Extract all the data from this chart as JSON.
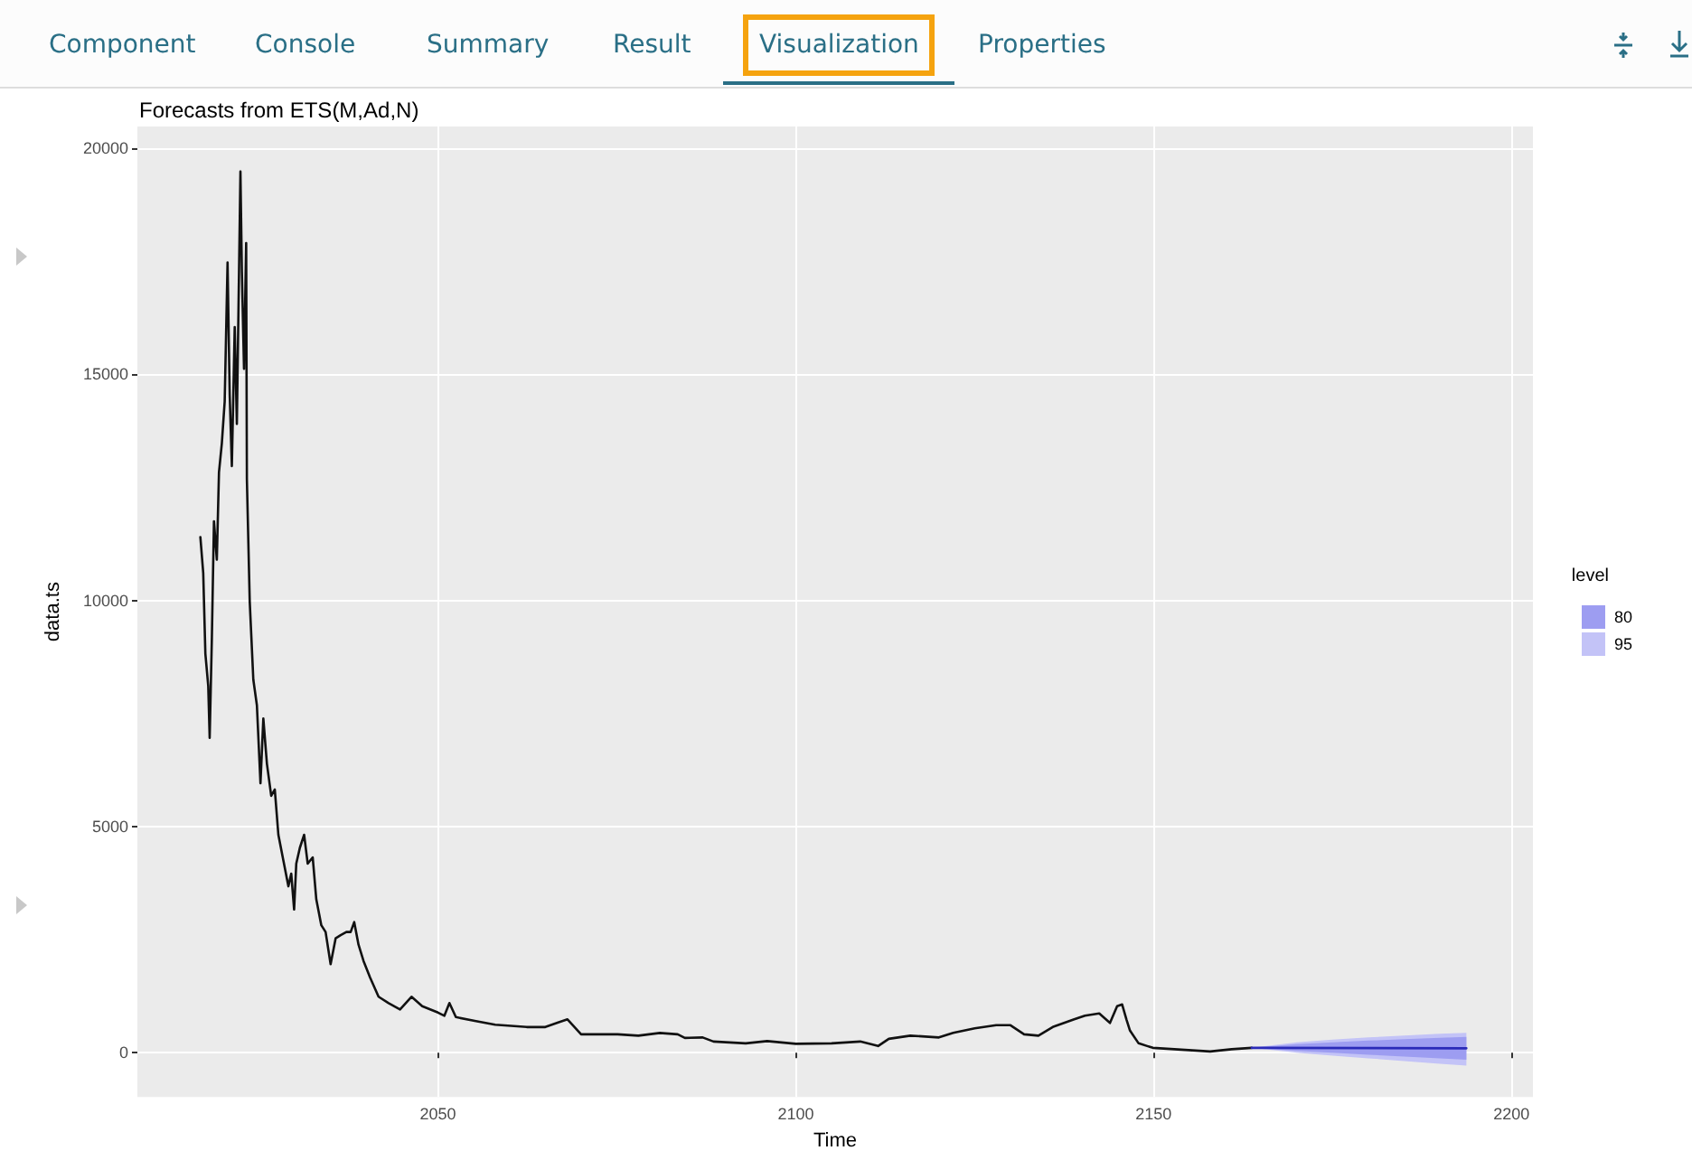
{
  "chart_data": {
    "type": "line",
    "title": "Forecasts from ETS(M,Ad,N)",
    "xlabel": "Time",
    "ylabel": "data.ts",
    "legend_title": "level",
    "legend": "right",
    "grid": true,
    "marker": "none",
    "line_style": "solid",
    "annotations": [
      "Component",
      "Console",
      "Summary",
      "Result",
      "Visualization",
      "Properties"
    ],
    "xlim": [
      2008,
      2203
    ],
    "xticks": [
      2050,
      2100,
      2150,
      2200
    ],
    "ylim": [
      -975,
      20475
    ],
    "yticks": [
      0,
      5000,
      10000,
      15000,
      20000
    ],
    "series": [
      {
        "color": "#111111",
        "x": [
          2016.8,
          2017.2,
          2017.5,
          2017.9,
          2018.1,
          2018.4,
          2018.7,
          2019.1,
          2019.4,
          2019.8,
          2020.2,
          2020.6,
          2020.9,
          2021.2,
          2021.6,
          2021.9,
          2022.4,
          2022.6,
          2022.9,
          2023.2,
          2023.3,
          2023.7,
          2024.2,
          2024.7,
          2025.2,
          2025.6,
          2026.1,
          2026.7,
          2027.2,
          2027.7,
          2028.4,
          2029.1,
          2029.5,
          2029.9,
          2030.2,
          2030.7,
          2031.3,
          2031.8,
          2032.5,
          2033.0,
          2033.7,
          2034.3,
          2035.0,
          2035.7,
          2036.4,
          2037.2,
          2037.8,
          2038.3,
          2038.9,
          2039.6,
          2040.5,
          2041.7,
          2043.1,
          2044.7,
          2046.3,
          2047.8,
          2050.0,
          2050.9,
          2051.6,
          2052.5,
          2055.3,
          2058.0,
          2062.4,
          2065.0,
          2066.8,
          2068.1,
          2070.0,
          2075.1,
          2078.0,
          2081.0,
          2083.5,
          2084.5,
          2087.0,
          2088.5,
          2093.0,
          2096.0,
          2100.0,
          2105.0,
          2109.0,
          2111.5,
          2113.0,
          2116.0,
          2120.0,
          2122.0,
          2125.0,
          2128.0,
          2130.0,
          2131.9,
          2133.9,
          2135.9,
          2138.9,
          2140.4,
          2142.4,
          2143.9,
          2144.9,
          2145.6,
          2146.2,
          2146.7,
          2147.9,
          2149.9,
          2152.9,
          2157.9,
          2160.9,
          2163.7
        ],
        "values": [
          11400,
          10610,
          8820,
          8110,
          6960,
          9110,
          11750,
          10900,
          12830,
          13470,
          14400,
          17470,
          14540,
          12970,
          16040,
          13900,
          19480,
          17260,
          15120,
          17900,
          12680,
          9970,
          8250,
          7680,
          5960,
          7390,
          6390,
          5680,
          5820,
          4820,
          4250,
          3680,
          3960,
          3170,
          4180,
          4530,
          4820,
          4180,
          4320,
          3390,
          2820,
          2670,
          1960,
          2530,
          2600,
          2670,
          2670,
          2890,
          2390,
          2030,
          1670,
          1240,
          1100,
          960,
          1240,
          1030,
          890,
          820,
          1100,
          790,
          700,
          620,
          570,
          570,
          670,
          740,
          410,
          410,
          380,
          440,
          410,
          330,
          340,
          250,
          210,
          260,
          200,
          210,
          250,
          150,
          310,
          380,
          340,
          440,
          540,
          610,
          610,
          410,
          380,
          570,
          740,
          820,
          870,
          660,
          1030,
          1070,
          740,
          490,
          210,
          110,
          80,
          30,
          80,
          110
        ]
      },
      {
        "name": "95",
        "color": "#c3c3f7",
        "x": [
          2163.7,
          2170,
          2175,
          2180,
          2185,
          2190,
          2193.7
        ],
        "values": [
          null,
          null,
          null,
          null,
          null,
          null,
          null
        ],
        "upper": [
          110,
          230,
          290,
          340,
          380,
          420,
          440
        ],
        "lower": [
          110,
          0,
          -60,
          -120,
          -180,
          -240,
          -280
        ]
      },
      {
        "name": "80",
        "color": "#9d9df1",
        "x": [
          2163.7,
          2170,
          2175,
          2180,
          2185,
          2190,
          2193.7
        ],
        "values": [
          null,
          null,
          null,
          null,
          null,
          null,
          null
        ],
        "upper": [
          110,
          190,
          230,
          270,
          300,
          330,
          350
        ],
        "lower": [
          110,
          40,
          0,
          -40,
          -80,
          -120,
          -150
        ]
      },
      {
        "color": "#2a2ab8",
        "x": [
          2163.7,
          2193.7
        ],
        "values": [
          110,
          100
        ]
      }
    ]
  }
}
